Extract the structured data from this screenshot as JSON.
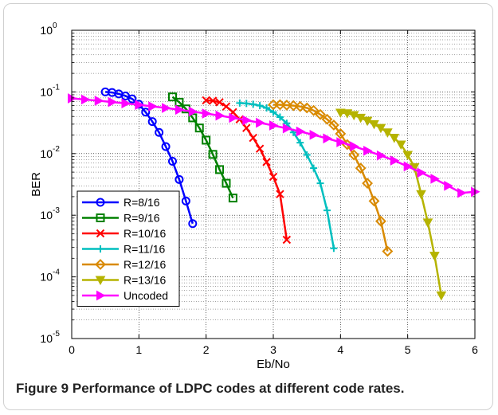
{
  "caption": {
    "label": "Figure 9",
    "text": "Performance of LDPC codes at different code rates."
  },
  "chart_data": {
    "type": "line",
    "xlabel": "Eb/No",
    "ylabel": "BER",
    "xlim": [
      0,
      6
    ],
    "ylim": [
      1e-05,
      1
    ],
    "yscale": "log",
    "grid": true,
    "legend_position": "bottom-left",
    "x_ticks": [
      "0",
      "1",
      "2",
      "3",
      "4",
      "5",
      "6"
    ],
    "y_ticks": [
      {
        "base": "10",
        "exp": "0",
        "value": 1
      },
      {
        "base": "10",
        "exp": "-1",
        "value": 0.1
      },
      {
        "base": "10",
        "exp": "-2",
        "value": 0.01
      },
      {
        "base": "10",
        "exp": "-3",
        "value": 0.001
      },
      {
        "base": "10",
        "exp": "-4",
        "value": 0.0001
      },
      {
        "base": "10",
        "exp": "-5",
        "value": 1e-05
      }
    ],
    "series": [
      {
        "name": "R=8/16",
        "color": "#0000ff",
        "marker": "circle",
        "x": [
          0.5,
          0.6,
          0.7,
          0.8,
          0.9,
          1.0,
          1.1,
          1.2,
          1.3,
          1.4,
          1.5,
          1.6,
          1.7,
          1.8
        ],
        "y": [
          0.1,
          0.098,
          0.093,
          0.086,
          0.077,
          0.063,
          0.047,
          0.033,
          0.022,
          0.013,
          0.0075,
          0.0038,
          0.0017,
          0.00073
        ]
      },
      {
        "name": "R=9/16",
        "color": "#008000",
        "marker": "square",
        "x": [
          1.5,
          1.6,
          1.7,
          1.8,
          1.9,
          2.0,
          2.1,
          2.2,
          2.3,
          2.4
        ],
        "y": [
          0.083,
          0.068,
          0.053,
          0.038,
          0.026,
          0.0165,
          0.0097,
          0.0055,
          0.0033,
          0.0019
        ]
      },
      {
        "name": "R=10/16",
        "color": "#ff0000",
        "marker": "x",
        "x": [
          2.0,
          2.1,
          2.2,
          2.3,
          2.4,
          2.5,
          2.6,
          2.7,
          2.8,
          2.9,
          3.0,
          3.1,
          3.2
        ],
        "y": [
          0.073,
          0.072,
          0.068,
          0.058,
          0.047,
          0.036,
          0.026,
          0.018,
          0.012,
          0.0073,
          0.0042,
          0.0022,
          0.0004
        ]
      },
      {
        "name": "R=11/16",
        "color": "#00bfbf",
        "marker": "plus",
        "x": [
          2.5,
          2.6,
          2.7,
          2.8,
          2.9,
          3.0,
          3.1,
          3.2,
          3.3,
          3.4,
          3.5,
          3.6,
          3.7,
          3.8,
          3.9
        ],
        "y": [
          0.066,
          0.065,
          0.063,
          0.06,
          0.055,
          0.047,
          0.039,
          0.031,
          0.022,
          0.015,
          0.0095,
          0.0058,
          0.0033,
          0.0012,
          0.00029
        ]
      },
      {
        "name": "R=12/16",
        "color": "#d98a00",
        "marker": "diamond",
        "x": [
          3.0,
          3.1,
          3.2,
          3.3,
          3.4,
          3.5,
          3.6,
          3.7,
          3.8,
          3.9,
          4.0,
          4.1,
          4.2,
          4.3,
          4.4,
          4.5,
          4.6,
          4.7
        ],
        "y": [
          0.062,
          0.062,
          0.061,
          0.06,
          0.058,
          0.055,
          0.05,
          0.043,
          0.036,
          0.029,
          0.021,
          0.014,
          0.0095,
          0.0058,
          0.0033,
          0.0017,
          0.0008,
          0.00026
        ]
      },
      {
        "name": "R=13/16",
        "color": "#b5b300",
        "marker": "triangle-down",
        "x": [
          4.0,
          4.1,
          4.2,
          4.3,
          4.4,
          4.5,
          4.6,
          4.7,
          4.8,
          4.9,
          5.0,
          5.1,
          5.2,
          5.3,
          5.4,
          5.5
        ],
        "y": [
          0.046,
          0.045,
          0.042,
          0.038,
          0.034,
          0.03,
          0.026,
          0.022,
          0.018,
          0.014,
          0.0095,
          0.006,
          0.0022,
          0.00076,
          0.00022,
          5e-05
        ]
      },
      {
        "name": "Uncoded",
        "color": "#ff00ff",
        "marker": "triangle-right",
        "x": [
          0.0,
          0.2,
          0.4,
          0.6,
          0.8,
          1.0,
          1.2,
          1.4,
          1.6,
          1.8,
          2.0,
          2.2,
          2.4,
          2.6,
          2.8,
          3.0,
          3.2,
          3.4,
          3.6,
          3.8,
          4.0,
          4.2,
          4.4,
          4.6,
          4.8,
          5.0,
          5.2,
          5.4,
          5.6,
          5.8,
          6.0
        ],
        "y": [
          0.0786,
          0.0753,
          0.072,
          0.0686,
          0.0652,
          0.0617,
          0.0583,
          0.0549,
          0.0514,
          0.048,
          0.0446,
          0.0413,
          0.038,
          0.0347,
          0.0316,
          0.0286,
          0.0256,
          0.0228,
          0.0201,
          0.0176,
          0.0153,
          0.0131,
          0.0111,
          0.0093,
          0.0077,
          0.0062,
          0.0049,
          0.0039,
          0.003,
          0.0023,
          0.0024
        ]
      }
    ]
  }
}
